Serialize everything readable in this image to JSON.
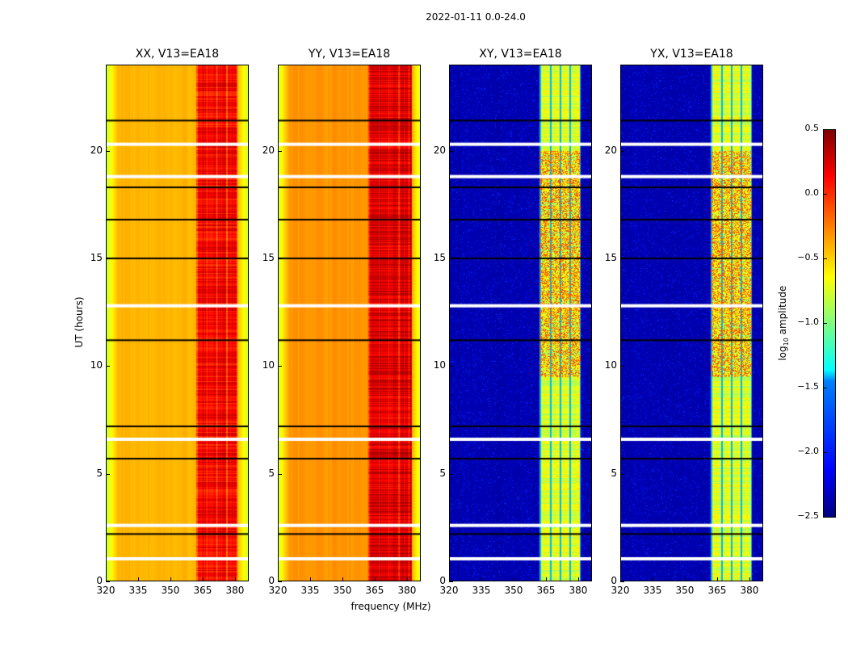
{
  "chart_data": {
    "type": "heatmap",
    "title": "2022-01-11 0.0-24.0",
    "xlabel": "frequency (MHz)",
    "ylabel": "UT (hours)",
    "xlim": [
      320,
      386.4
    ],
    "ylim": [
      0,
      24
    ],
    "xticks": [
      320,
      335,
      350,
      365,
      380
    ],
    "yticks": [
      0,
      5,
      10,
      15,
      20
    ],
    "colorbar": {
      "label_main": "log",
      "label_sub": "10",
      "label_rest": " amplitude",
      "range": [
        -2.5,
        0.5
      ],
      "ticks": [
        "0.5",
        "0.0",
        "−0.5",
        "−1.0",
        "−1.5",
        "−2.0",
        "−2.5"
      ],
      "tick_values": [
        0.5,
        0,
        -0.5,
        -1,
        -1.5,
        -2,
        -2.5
      ],
      "colormap": "jet"
    },
    "panels": [
      {
        "title": "XX, V13=EA18",
        "base": -0.45,
        "edge": -0.8,
        "band": [
          362,
          381
        ],
        "band_value": 0.05
      },
      {
        "title": "YY, V13=EA18",
        "base": -0.35,
        "edge": -0.75,
        "band": [
          362,
          382
        ],
        "band_value": 0.15
      },
      {
        "title": "XY, V13=EA18",
        "base": -2.4,
        "edge": -2.4,
        "band": [
          362,
          381
        ],
        "band_value": -0.8
      },
      {
        "title": "YX, V13=EA18",
        "base": -2.4,
        "edge": -2.4,
        "band": [
          362,
          381
        ],
        "band_value": -0.8
      }
    ],
    "flagged_hours": [
      1.05,
      2.6,
      6.6,
      12.8,
      18.8,
      20.3
    ],
    "dark_hours": [
      2.2,
      5.7,
      7.2,
      11.2,
      15.0,
      16.8,
      18.3,
      21.4
    ]
  }
}
